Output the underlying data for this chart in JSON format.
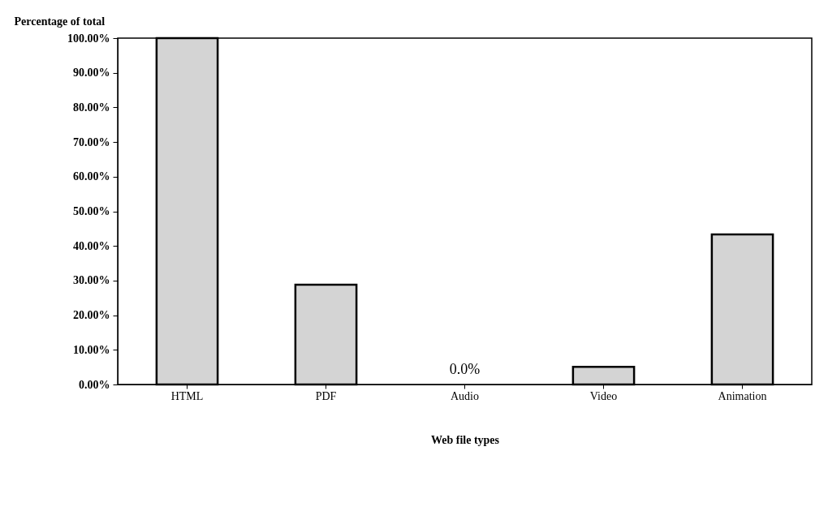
{
  "chart_data": {
    "type": "bar",
    "ylabel": "Percentage of total",
    "xlabel": "Web file types",
    "categories": [
      "HTML",
      "PDF",
      "Audio",
      "Video",
      "Animation"
    ],
    "values": [
      100,
      28.8,
      0,
      5.1,
      43.3
    ],
    "color": "#d4d4d4",
    "value_labels": [
      null,
      null,
      "0.0%",
      null,
      null
    ],
    "ylim": [
      0,
      100
    ],
    "yticks": [
      {
        "value": 0,
        "label": "0.00%"
      },
      {
        "value": 10,
        "label": "10.00%"
      },
      {
        "value": 20,
        "label": "20.00%"
      },
      {
        "value": 30,
        "label": "30.00%"
      },
      {
        "value": 40,
        "label": "40.00%"
      },
      {
        "value": 50,
        "label": "50.00%"
      },
      {
        "value": 60,
        "label": "60.00%"
      },
      {
        "value": 70,
        "label": "70.00%"
      },
      {
        "value": 80,
        "label": "80.00%"
      },
      {
        "value": 90,
        "label": "90.00%"
      },
      {
        "value": 100,
        "label": "100.00%"
      }
    ],
    "grid": false
  }
}
